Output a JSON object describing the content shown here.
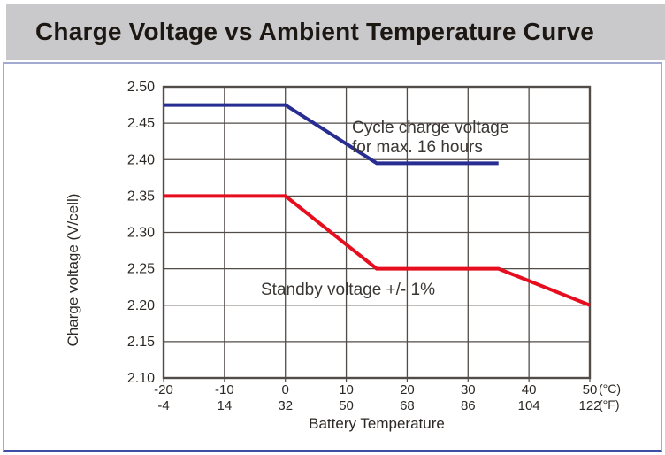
{
  "title": "Charge Voltage vs Ambient Temperature Curve",
  "colors": {
    "title_band_bg": "#c9c9cb",
    "title_text": "#1c1713",
    "panel_bg": "#ffffff",
    "panel_border": "#a3aad2",
    "panel_border_bottom": "#3e4da5",
    "grid": "#524c48",
    "axis_text": "#2b2724"
  },
  "chart_data": {
    "type": "line",
    "title": "Charge Voltage vs Ambient Temperature Curve",
    "xlabel": "Battery Temperature",
    "ylabel": "Charge voltage (V/cell)",
    "xlim": [
      -20,
      50
    ],
    "ylim": [
      2.1,
      2.5
    ],
    "grid": true,
    "legend_position": "inline-annotations",
    "x_axis": {
      "celsius_ticks": [
        -20,
        -10,
        0,
        10,
        20,
        30,
        40,
        50
      ],
      "celsius_unit": "(°C)",
      "fahrenheit_ticks": [
        -4,
        14,
        32,
        50,
        68,
        86,
        104,
        122
      ],
      "fahrenheit_unit": "(°F)"
    },
    "y_ticks": [
      2.5,
      2.45,
      2.4,
      2.35,
      2.3,
      2.25,
      2.2,
      2.15,
      2.1
    ],
    "series": [
      {
        "name": "cycle-charge-voltage",
        "label_line1": "Cycle charge voltage",
        "label_line2": "for max. 16 hours",
        "color": "#282e91",
        "points": [
          [
            -20,
            2.475
          ],
          [
            0,
            2.475
          ],
          [
            15,
            2.395
          ],
          [
            35,
            2.395
          ]
        ]
      },
      {
        "name": "standby-voltage",
        "label": "Standby voltage +/- 1%",
        "color": "#e60e1e",
        "points": [
          [
            -20,
            2.35
          ],
          [
            0,
            2.35
          ],
          [
            15,
            2.25
          ],
          [
            35,
            2.25
          ],
          [
            50,
            2.2
          ]
        ]
      }
    ]
  }
}
